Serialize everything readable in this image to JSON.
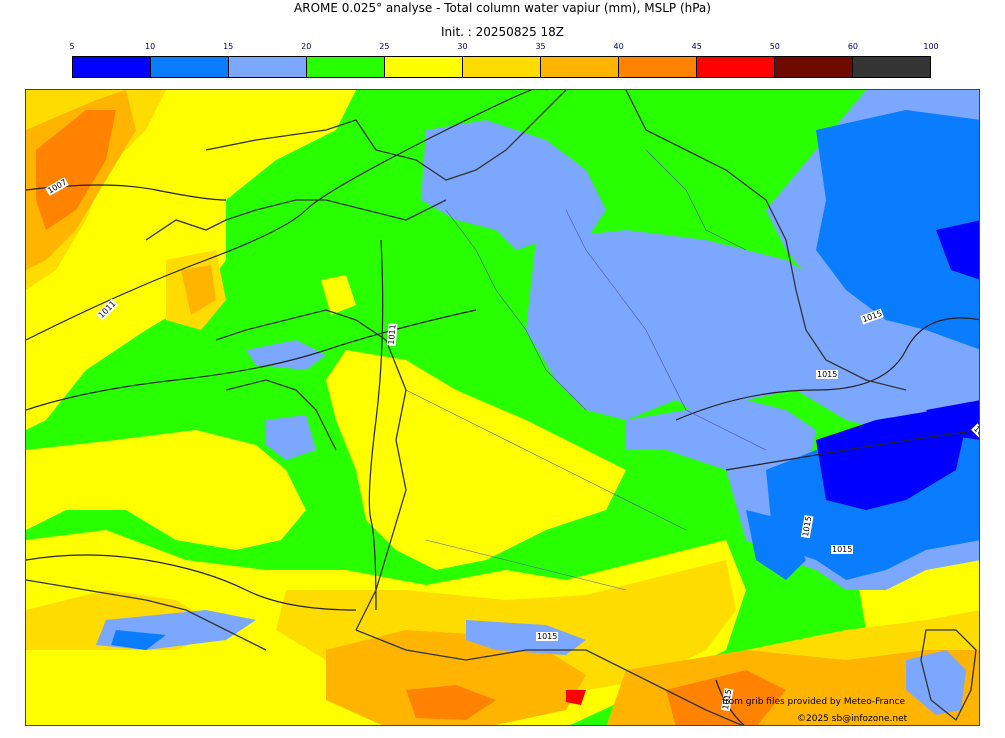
{
  "title": "AROME 0.025° analyse - Total column water vapiur (mm), MSLP (hPa)",
  "init": "Init. : 20250825 18Z",
  "colorbar": {
    "ticks": [
      "5",
      "10",
      "15",
      "20",
      "25",
      "30",
      "35",
      "40",
      "45",
      "50",
      "60",
      "100"
    ],
    "colors": [
      "#0000ff",
      "#0a7dff",
      "#7ba7ff",
      "#28ff00",
      "#ffff00",
      "#ffdc00",
      "#ffb400",
      "#ff8200",
      "#ff0000",
      "#6e0a00",
      "#353535"
    ]
  },
  "isobar_labels": [
    "1007",
    "1011",
    "1011",
    "1015",
    "1015",
    "1015",
    "1015",
    "1015",
    "1015",
    "1015",
    "1015"
  ],
  "credits": {
    "line1": "from grib files provided by Meteo-France",
    "line2": "©2025 sb@infozone.net"
  }
}
